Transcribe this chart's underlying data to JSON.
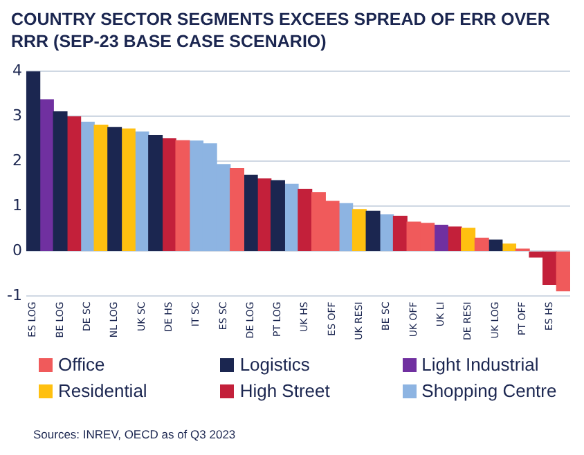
{
  "chart_data": {
    "type": "bar",
    "title": "COUNTRY SECTOR SEGMENTS EXCEES SPREAD OF ERR OVER RRR (SEP-23 BASE CASE SCENARIO)",
    "categories": [
      "ES LOG",
      null,
      "BE LOG",
      null,
      "DE SC",
      null,
      "NL LOG",
      null,
      "UK SC",
      null,
      "DE HS",
      null,
      "IT SC",
      null,
      "ES SC",
      null,
      "DE LOG",
      null,
      "PT LOG",
      null,
      "UK HS",
      null,
      "ES OFF",
      null,
      "UK RESI",
      null,
      "BE SC",
      null,
      "UK OFF",
      null,
      "UK LI",
      null,
      "DE RESI",
      null,
      "UK LOG",
      null,
      "PT OFF",
      null,
      "ES HS",
      null
    ],
    "series": [
      {
        "name": "Office",
        "color": "#f05a5b",
        "values": [
          null,
          null,
          null,
          null,
          null,
          null,
          null,
          null,
          null,
          null,
          null,
          2.46,
          null,
          null,
          null,
          1.84,
          null,
          null,
          null,
          null,
          null,
          1.3,
          1.11,
          null,
          null,
          null,
          null,
          null,
          0.65,
          0.62,
          null,
          null,
          null,
          0.29,
          null,
          null,
          0.05,
          null,
          null,
          -0.88
        ]
      },
      {
        "name": "Logistics",
        "color": "#1b2650",
        "values": [
          4.0,
          null,
          3.1,
          null,
          null,
          null,
          2.75,
          null,
          null,
          2.58,
          null,
          null,
          null,
          null,
          null,
          null,
          1.69,
          null,
          1.57,
          null,
          null,
          null,
          null,
          null,
          null,
          0.89,
          null,
          null,
          null,
          null,
          null,
          null,
          null,
          null,
          0.25,
          null,
          null,
          null,
          null,
          null
        ]
      },
      {
        "name": "Light Industrial",
        "color": "#7030a0",
        "values": [
          null,
          3.37,
          null,
          null,
          null,
          null,
          null,
          null,
          null,
          null,
          null,
          null,
          null,
          null,
          null,
          null,
          null,
          null,
          null,
          null,
          null,
          null,
          null,
          null,
          null,
          null,
          null,
          null,
          null,
          null,
          0.58,
          null,
          null,
          null,
          null,
          null,
          null,
          null,
          null,
          null
        ]
      },
      {
        "name": "Residential",
        "color": "#ffc010",
        "values": [
          null,
          null,
          null,
          null,
          null,
          2.8,
          null,
          2.72,
          null,
          null,
          null,
          null,
          null,
          null,
          null,
          null,
          null,
          null,
          null,
          null,
          null,
          null,
          null,
          null,
          0.93,
          null,
          null,
          null,
          null,
          null,
          null,
          null,
          0.51,
          null,
          null,
          0.16,
          null,
          null,
          null,
          null
        ]
      },
      {
        "name": "High Street",
        "color": "#c3203a",
        "values": [
          null,
          null,
          null,
          2.99,
          null,
          null,
          null,
          null,
          null,
          null,
          2.5,
          null,
          null,
          null,
          null,
          null,
          null,
          1.61,
          null,
          null,
          1.38,
          null,
          null,
          null,
          null,
          null,
          null,
          0.78,
          null,
          null,
          null,
          0.54,
          null,
          null,
          null,
          null,
          null,
          -0.13,
          -0.74,
          null
        ]
      },
      {
        "name": "Shopping Centre",
        "color": "#8db4e2",
        "values": [
          null,
          null,
          null,
          null,
          2.87,
          null,
          null,
          null,
          2.65,
          null,
          null,
          null,
          2.45,
          2.39,
          1.93,
          null,
          null,
          null,
          null,
          1.49,
          null,
          null,
          null,
          1.06,
          null,
          null,
          0.81,
          null,
          null,
          null,
          null,
          null,
          null,
          null,
          null,
          null,
          null,
          null,
          null,
          null
        ]
      }
    ],
    "ylim": [
      -1,
      4
    ],
    "yticks": [
      -1,
      0,
      1,
      2,
      3,
      4
    ],
    "grid": "y",
    "legend": "bottom",
    "annotations": [
      "Sources: INREV, OECD as of Q3 2023"
    ]
  }
}
